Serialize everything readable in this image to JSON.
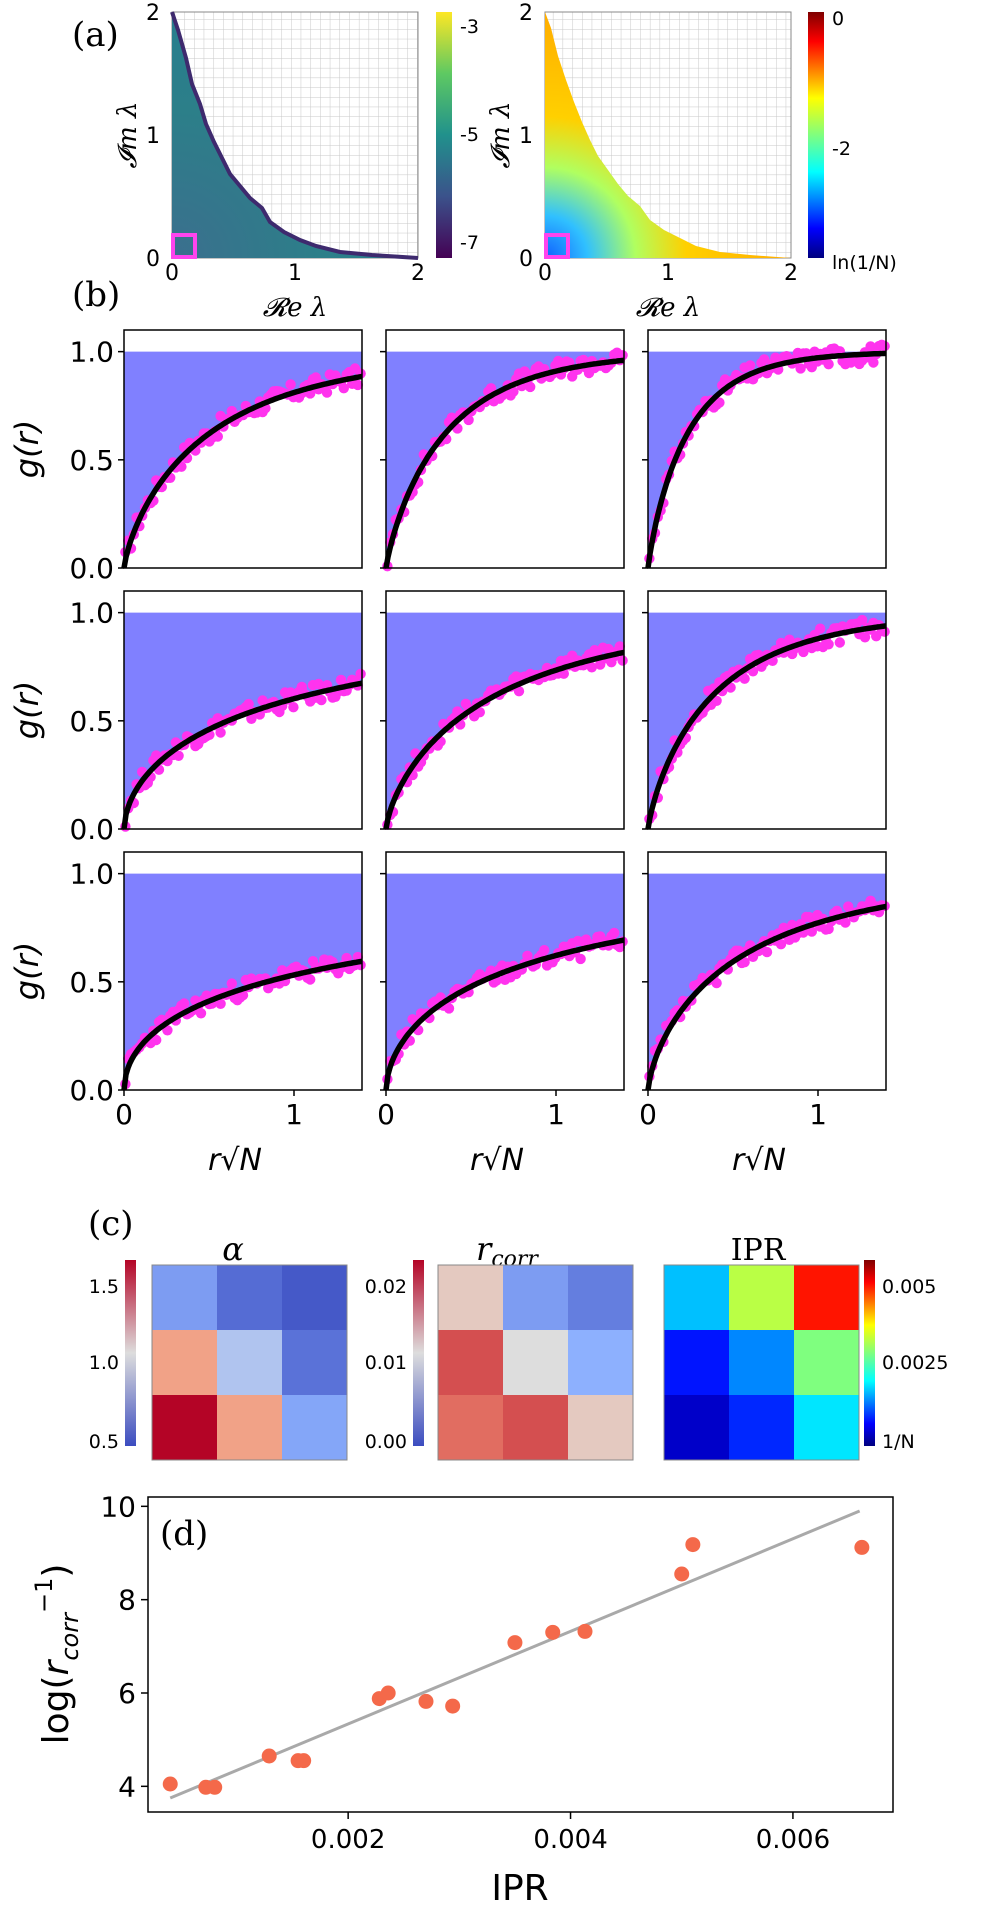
{
  "panel_labels": {
    "a": "(a)",
    "b": "(b)",
    "c": "(c)",
    "d": "(d)"
  },
  "chart_data": [
    {
      "id": "a-left",
      "type": "heatmap",
      "xlabel": "𝓡e λ",
      "ylabel": "𝓘m λ",
      "xlim": [
        0,
        2
      ],
      "ylim": [
        0,
        2
      ],
      "xticks": [
        "0",
        "1",
        "2"
      ],
      "yticks": [
        "0",
        "1",
        "2"
      ],
      "colorbar": {
        "ticks": [
          "-3",
          "-5",
          "-7"
        ],
        "range": [
          -7.6,
          -2.6
        ],
        "colormap": "viridis"
      },
      "highlight_box_color": "#ff44ee"
    },
    {
      "id": "a-right",
      "type": "heatmap",
      "xlabel": "𝓡e λ",
      "ylabel": "𝓘m λ",
      "xlim": [
        0,
        2
      ],
      "ylim": [
        0,
        2
      ],
      "xticks": [
        "0",
        "1",
        "2"
      ],
      "yticks": [
        "0",
        "1",
        "2"
      ],
      "colorbar": {
        "ticks": [
          "0",
          "-2",
          "ln(1/N)"
        ],
        "colormap": "jet"
      },
      "highlight_box_color": "#ff44ee"
    },
    {
      "id": "b",
      "type": "scatter",
      "ylabel": "g(r)",
      "xlabel": "r√N",
      "xlim": [
        0,
        1.4
      ],
      "ylim": [
        0,
        1.1
      ],
      "xticks": [
        "0",
        "1"
      ],
      "yticks": [
        "0.0",
        "0.5",
        "1.0"
      ],
      "colors": {
        "fill": "#8080ff",
        "points": "#ff33ee",
        "fit": "#000000"
      },
      "grid": [
        [
          {
            "a": 0.52,
            "b": 0.78
          },
          {
            "a": 0.36,
            "b": 0.86
          },
          {
            "a": 0.24,
            "b": 0.89
          }
        ],
        [
          {
            "a": 1.15,
            "b": 0.58
          },
          {
            "a": 0.68,
            "b": 0.73
          },
          {
            "a": 0.4,
            "b": 0.82
          }
        ],
        [
          {
            "a": 1.7,
            "b": 0.52
          },
          {
            "a": 1.05,
            "b": 0.58
          },
          {
            "a": 0.58,
            "b": 0.72
          }
        ]
      ]
    },
    {
      "id": "c",
      "type": "heatmap",
      "panels": [
        {
          "title": "α",
          "colormap": "coolwarm",
          "range": [
            0.3,
            1.55
          ],
          "ticks": [
            "1.5",
            "1.0",
            "0.5"
          ],
          "values": [
            [
              0.55,
              0.4,
              0.34
            ],
            [
              1.2,
              0.75,
              0.42
            ],
            [
              1.55,
              1.2,
              0.58
            ]
          ]
        },
        {
          "title": "r_corr",
          "colormap": "coolwarm",
          "range": [
            0.0,
            0.02
          ],
          "ticks": [
            "0.02",
            "0.01",
            "0.00"
          ],
          "values": [
            [
              0.0115,
              0.004,
              0.0025
            ],
            [
              0.0175,
              0.01,
              0.005
            ],
            [
              0.0165,
              0.0175,
              0.0115
            ]
          ]
        },
        {
          "title": "IPR",
          "colormap": "jet",
          "range": [
            0.0,
            0.0058
          ],
          "ticks": [
            "0.005",
            "0.0025",
            "1/N"
          ],
          "values": [
            [
              0.0017,
              0.0033,
              0.005
            ],
            [
              0.0008,
              0.0014,
              0.0029
            ],
            [
              0.0004,
              0.0009,
              0.0019
            ]
          ]
        }
      ]
    },
    {
      "id": "d",
      "type": "scatter",
      "label": "(d)",
      "xlabel": "IPR",
      "ylabel": "log(r_corr⁻¹)",
      "xlim": [
        0.0002,
        0.0069
      ],
      "ylim": [
        3.45,
        10.2
      ],
      "xticks": [
        "0.002",
        "0.004",
        "0.006"
      ],
      "yticks": [
        "4",
        "6",
        "8",
        "10"
      ],
      "point_color": "#f4694a",
      "line_color": "#a9a9a9",
      "fit": {
        "x": [
          0.0004,
          0.0066
        ],
        "y": [
          3.75,
          9.9
        ]
      },
      "points": [
        [
          0.0004,
          4.05
        ],
        [
          0.00072,
          3.98
        ],
        [
          0.0008,
          3.98
        ],
        [
          0.00129,
          4.65
        ],
        [
          0.00155,
          4.55
        ],
        [
          0.0016,
          4.55
        ],
        [
          0.00228,
          5.88
        ],
        [
          0.00236,
          6.0
        ],
        [
          0.0027,
          5.82
        ],
        [
          0.00294,
          5.72
        ],
        [
          0.0035,
          7.08
        ],
        [
          0.00384,
          7.3
        ],
        [
          0.00413,
          7.32
        ],
        [
          0.005,
          8.55
        ],
        [
          0.0051,
          9.18
        ],
        [
          0.00662,
          9.12
        ]
      ]
    }
  ]
}
